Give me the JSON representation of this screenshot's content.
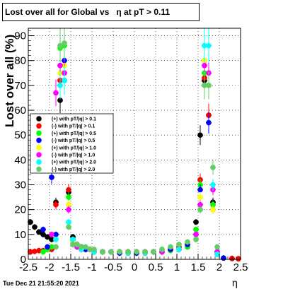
{
  "title": "Lost over all for Global vs   η at pT > 0.11",
  "footer": "Tue Dec 21 21:55:20 2021",
  "chart_data": {
    "type": "scatter",
    "xlabel": "η",
    "ylabel": "Lost over all (%)",
    "xlim": [
      -2.5,
      2.5
    ],
    "ylim": [
      0,
      93
    ],
    "x_ticks": [
      "-2.5",
      "-2",
      "-1.5",
      "-1",
      "-0.5",
      "0",
      "0.5",
      "1",
      "1.5",
      "2",
      "2.5"
    ],
    "y_ticks": [
      "0",
      "10",
      "20",
      "30",
      "40",
      "50",
      "60",
      "70",
      "80",
      "90"
    ],
    "grid": true,
    "legend_position": "left-middle",
    "series": [
      {
        "name": "(+) with pT/|q| > 0.1",
        "color": "#000000",
        "points": [
          [
            -2.45,
            15
          ],
          [
            -2.35,
            13
          ],
          [
            -2.25,
            11
          ],
          [
            -2.15,
            10
          ],
          [
            -2.05,
            9
          ],
          [
            -1.95,
            8
          ],
          [
            -1.85,
            23
          ],
          [
            -1.75,
            64
          ],
          [
            -1.65,
            72
          ],
          [
            -1.55,
            27
          ],
          [
            -1.45,
            9
          ],
          [
            -1.35,
            6
          ],
          [
            -1.25,
            5
          ],
          [
            -1.15,
            4
          ],
          [
            -1.05,
            4
          ],
          [
            -0.95,
            3
          ],
          [
            -0.75,
            3
          ],
          [
            -0.55,
            3
          ],
          [
            -0.35,
            3
          ],
          [
            -0.15,
            3
          ],
          [
            0.05,
            3
          ],
          [
            0.25,
            3
          ],
          [
            0.45,
            3
          ],
          [
            0.65,
            3
          ],
          [
            0.85,
            4
          ],
          [
            1.05,
            4
          ],
          [
            1.25,
            5
          ],
          [
            1.45,
            15
          ],
          [
            1.55,
            50
          ],
          [
            1.65,
            72
          ],
          [
            1.75,
            58
          ],
          [
            1.85,
            23
          ],
          [
            1.95,
            2
          ],
          [
            2.1,
            0.5
          ],
          [
            2.3,
            0.3
          ],
          [
            2.45,
            0.2
          ]
        ]
      },
      {
        "name": "(-) with pT/|q| > 0.1",
        "color": "#ff0000",
        "points": [
          [
            -2.45,
            3
          ],
          [
            -2.35,
            3.2
          ],
          [
            -2.25,
            3.5
          ],
          [
            -2.15,
            3.5
          ],
          [
            -2.05,
            4
          ],
          [
            -1.95,
            4
          ],
          [
            -1.85,
            22
          ],
          [
            -1.75,
            72
          ],
          [
            -1.65,
            75
          ],
          [
            -1.55,
            28
          ],
          [
            -1.45,
            8
          ],
          [
            -1.35,
            6
          ],
          [
            -1.25,
            5
          ],
          [
            -1.15,
            4
          ],
          [
            -1.05,
            4
          ],
          [
            -0.95,
            3
          ],
          [
            -0.75,
            3
          ],
          [
            -0.55,
            3
          ],
          [
            -0.35,
            3
          ],
          [
            -0.15,
            3
          ],
          [
            0.05,
            3
          ],
          [
            0.25,
            3
          ],
          [
            0.45,
            3
          ],
          [
            0.65,
            3
          ],
          [
            0.85,
            4
          ],
          [
            1.05,
            5
          ],
          [
            1.25,
            6
          ],
          [
            1.45,
            12
          ],
          [
            1.55,
            32
          ],
          [
            1.65,
            73
          ],
          [
            1.75,
            58
          ],
          [
            1.85,
            22
          ],
          [
            1.95,
            3
          ],
          [
            2.1,
            0.5
          ],
          [
            2.3,
            0.3
          ],
          [
            2.45,
            0.2
          ]
        ]
      },
      {
        "name": "(+) with pT/|q| > 0.5",
        "color": "#00ff00",
        "points": [
          [
            -2.15,
            3
          ],
          [
            -2.05,
            4
          ],
          [
            -1.95,
            5
          ],
          [
            -1.85,
            8
          ],
          [
            -1.75,
            85
          ],
          [
            -1.65,
            86
          ],
          [
            -1.55,
            25
          ],
          [
            -1.45,
            8
          ],
          [
            -1.35,
            5
          ],
          [
            -1.25,
            4
          ],
          [
            -1.15,
            4
          ],
          [
            -0.95,
            3
          ],
          [
            -0.75,
            3
          ],
          [
            -0.55,
            3
          ],
          [
            -0.35,
            2.5
          ],
          [
            -0.15,
            2.5
          ],
          [
            0.05,
            2.5
          ],
          [
            0.25,
            2.5
          ],
          [
            0.45,
            3
          ],
          [
            0.65,
            3
          ],
          [
            0.85,
            3.5
          ],
          [
            1.05,
            4
          ],
          [
            1.25,
            5
          ],
          [
            1.45,
            12
          ],
          [
            1.55,
            30
          ],
          [
            1.65,
            75
          ],
          [
            1.75,
            70
          ],
          [
            1.85,
            22
          ],
          [
            1.95,
            3
          ],
          [
            2.1,
            0.5
          ]
        ]
      },
      {
        "name": "(-) with pT/|q| > 0.5",
        "color": "#0000ff",
        "points": [
          [
            -2.15,
            12
          ],
          [
            -2.05,
            5
          ],
          [
            -1.95,
            33
          ],
          [
            -1.85,
            10
          ],
          [
            -1.75,
            78
          ],
          [
            -1.65,
            80
          ],
          [
            -1.55,
            22
          ],
          [
            -1.45,
            7
          ],
          [
            -1.35,
            5
          ],
          [
            -1.25,
            4
          ],
          [
            -1.15,
            4
          ],
          [
            -0.95,
            3
          ],
          [
            -0.75,
            3
          ],
          [
            -0.55,
            3
          ],
          [
            -0.35,
            2.5
          ],
          [
            -0.15,
            2.5
          ],
          [
            0.05,
            2.5
          ],
          [
            0.25,
            2.5
          ],
          [
            0.45,
            3
          ],
          [
            0.65,
            3
          ],
          [
            0.85,
            4
          ],
          [
            1.05,
            4
          ],
          [
            1.25,
            6
          ],
          [
            1.45,
            10
          ],
          [
            1.55,
            28
          ],
          [
            1.65,
            80
          ],
          [
            1.75,
            55
          ],
          [
            1.85,
            20
          ],
          [
            1.95,
            3
          ],
          [
            2.1,
            0.5
          ]
        ]
      },
      {
        "name": "(+) with pT/|q| > 1.0",
        "color": "#ffff00",
        "points": [
          [
            -1.85,
            8
          ],
          [
            -1.75,
            75
          ],
          [
            -1.65,
            78
          ],
          [
            -1.55,
            22
          ],
          [
            -1.45,
            7
          ],
          [
            -1.35,
            5
          ],
          [
            -1.25,
            4
          ],
          [
            -0.95,
            3
          ],
          [
            -0.55,
            3
          ],
          [
            -0.15,
            2.5
          ],
          [
            0.25,
            2.5
          ],
          [
            0.65,
            3
          ],
          [
            1.05,
            4
          ],
          [
            1.45,
            10
          ],
          [
            1.55,
            25
          ],
          [
            1.65,
            80
          ],
          [
            1.75,
            75
          ],
          [
            1.85,
            20
          ],
          [
            1.95,
            2
          ]
        ]
      },
      {
        "name": "(-) with pT/|q| > 1.0",
        "color": "#ff00ff",
        "points": [
          [
            -1.95,
            10
          ],
          [
            -1.85,
            67
          ],
          [
            -1.75,
            78
          ],
          [
            -1.65,
            75
          ],
          [
            -1.55,
            20
          ],
          [
            -1.45,
            6
          ],
          [
            -1.35,
            5
          ],
          [
            -1.25,
            4
          ],
          [
            -0.95,
            3
          ],
          [
            -0.55,
            3
          ],
          [
            -0.15,
            2.5
          ],
          [
            0.25,
            2.5
          ],
          [
            0.65,
            3
          ],
          [
            1.05,
            4
          ],
          [
            1.45,
            10
          ],
          [
            1.55,
            22
          ],
          [
            1.65,
            78
          ],
          [
            1.75,
            75
          ],
          [
            1.85,
            28
          ],
          [
            1.95,
            3
          ]
        ]
      },
      {
        "name": "(+) with pT/|q| > 2.0",
        "color": "#00ffff",
        "points": [
          [
            -1.85,
            8
          ],
          [
            -1.75,
            70
          ],
          [
            -1.65,
            72
          ],
          [
            -1.55,
            15
          ],
          [
            -1.45,
            8
          ],
          [
            -1.35,
            6
          ],
          [
            -1.25,
            4
          ],
          [
            -0.95,
            3
          ],
          [
            -0.55,
            3
          ],
          [
            -0.15,
            2.5
          ],
          [
            0.25,
            2.5
          ],
          [
            0.65,
            4
          ],
          [
            1.05,
            4
          ],
          [
            1.45,
            8
          ],
          [
            1.55,
            20
          ],
          [
            1.65,
            86
          ],
          [
            1.75,
            86
          ],
          [
            1.85,
            30
          ],
          [
            1.95,
            2
          ]
        ]
      },
      {
        "name": "(-) with pT/|q| > 2.0",
        "color": "#66cc66",
        "points": [
          [
            -1.85,
            5
          ],
          [
            -1.75,
            86
          ],
          [
            -1.65,
            87
          ],
          [
            -1.55,
            13
          ],
          [
            -1.45,
            6
          ],
          [
            -1.35,
            6
          ],
          [
            -1.25,
            5
          ],
          [
            -1.15,
            5
          ],
          [
            -1.05,
            4
          ],
          [
            -0.95,
            4
          ],
          [
            -0.75,
            3
          ],
          [
            -0.55,
            3
          ],
          [
            -0.35,
            3
          ],
          [
            -0.15,
            3
          ],
          [
            0.05,
            3
          ],
          [
            0.25,
            3
          ],
          [
            0.45,
            3
          ],
          [
            0.65,
            4
          ],
          [
            0.85,
            5
          ],
          [
            1.05,
            6
          ],
          [
            1.25,
            7
          ],
          [
            1.45,
            8
          ],
          [
            1.55,
            20
          ],
          [
            1.65,
            70
          ],
          [
            1.75,
            70
          ],
          [
            1.85,
            37
          ],
          [
            1.95,
            5
          ]
        ]
      }
    ]
  }
}
